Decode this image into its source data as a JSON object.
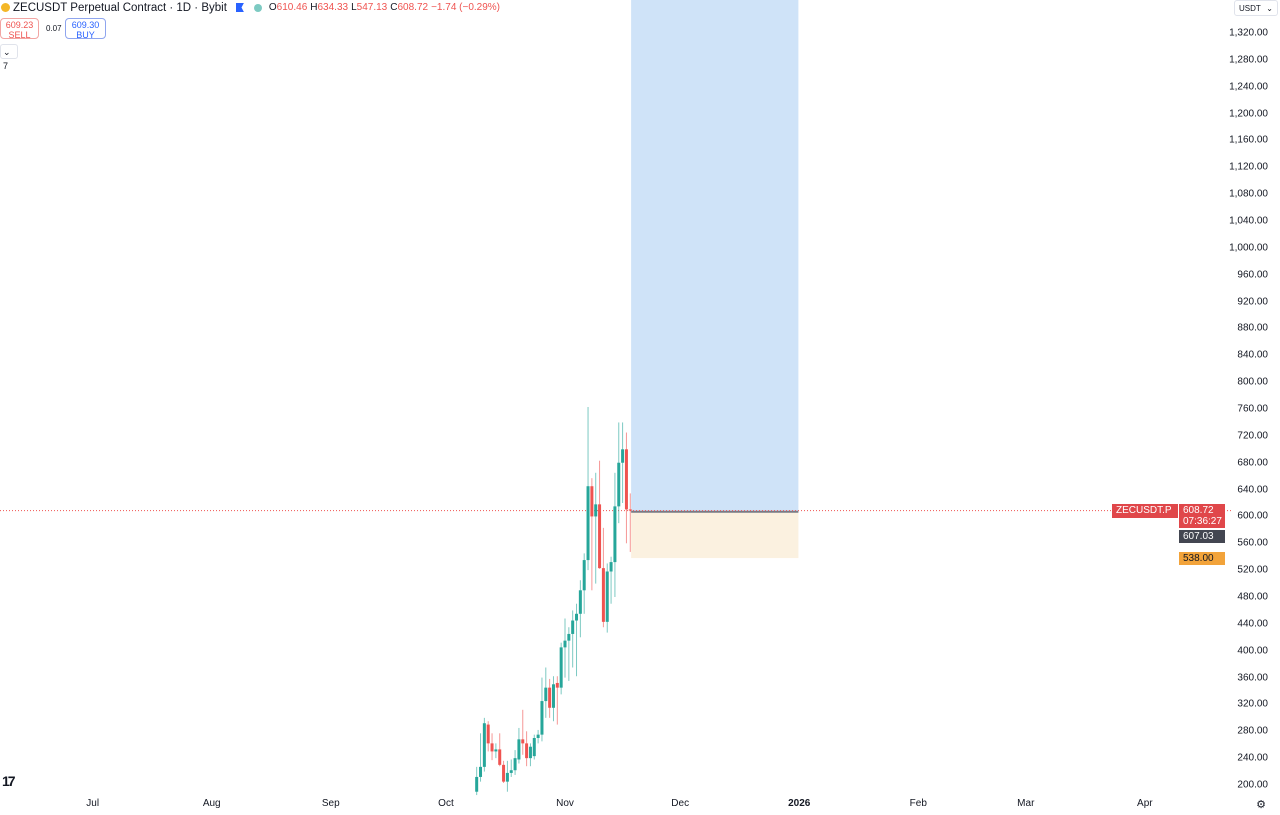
{
  "header": {
    "symbol_title": "ZECUSDT Perpetual Contract · 1D · Bybit",
    "ohlc": {
      "o_label": "O",
      "o": "610.46",
      "h_label": "H",
      "h": "634.33",
      "l_label": "L",
      "l": "547.13",
      "c_label": "C",
      "c": "608.72",
      "change": "−1.74 (−0.29%)"
    },
    "sell_price": "609.23",
    "sell_label": "SELL",
    "spread": "0.07",
    "buy_price": "609.30",
    "buy_label": "BUY",
    "indicators_count": "7",
    "currency": "USDT"
  },
  "tags": {
    "symbol": "ZECUSDT.P",
    "last_price": "608.72",
    "countdown": "07:36:27",
    "entry_price": "607.03",
    "stop_price": "538.00"
  },
  "colors": {
    "up": "#26a69a",
    "down": "#ef5350",
    "target_zone": "#cfe3f8",
    "stop_zone": "#fbf1e0",
    "last_price_tag": "#e0474a",
    "entry_tag": "#434651",
    "stop_tag": "#f2a33a"
  },
  "chart_data": {
    "type": "candlestick",
    "ylim": [
      190,
      1340
    ],
    "y_ticks": [
      "200.00",
      "240.00",
      "280.00",
      "320.00",
      "360.00",
      "400.00",
      "440.00",
      "480.00",
      "520.00",
      "560.00",
      "600.00",
      "640.00",
      "680.00",
      "720.00",
      "760.00",
      "800.00",
      "840.00",
      "880.00",
      "920.00",
      "960.00",
      "1,000.00",
      "1,040.00",
      "1,080.00",
      "1,120.00",
      "1,160.00",
      "1,200.00",
      "1,240.00",
      "1,280.00",
      "1,320.00"
    ],
    "x_ticks": [
      {
        "label": "Jul",
        "date": "2025-07-01"
      },
      {
        "label": "Aug",
        "date": "2025-08-01"
      },
      {
        "label": "Sep",
        "date": "2025-09-01"
      },
      {
        "label": "Oct",
        "date": "2025-10-01"
      },
      {
        "label": "Nov",
        "date": "2025-11-01"
      },
      {
        "label": "Dec",
        "date": "2025-12-01"
      },
      {
        "label": "2026",
        "date": "2026-01-01",
        "bold": true
      },
      {
        "label": "Feb",
        "date": "2026-02-01"
      },
      {
        "label": "Mar",
        "date": "2026-03-01"
      },
      {
        "label": "Apr",
        "date": "2026-04-01"
      }
    ],
    "candles_ohlc": [
      [
        "2025-10-09",
        190,
        227,
        185,
        212
      ],
      [
        "2025-10-10",
        212,
        277,
        205,
        227
      ],
      [
        "2025-10-11",
        227,
        300,
        220,
        292
      ],
      [
        "2025-10-12",
        290,
        295,
        250,
        262
      ],
      [
        "2025-10-13",
        262,
        277,
        237,
        250
      ],
      [
        "2025-10-14",
        250,
        262,
        240,
        253
      ],
      [
        "2025-10-15",
        253,
        277,
        228,
        230
      ],
      [
        "2025-10-16",
        230,
        236,
        203,
        205
      ],
      [
        "2025-10-17",
        205,
        236,
        190,
        218
      ],
      [
        "2025-10-18",
        218,
        238,
        212,
        222
      ],
      [
        "2025-10-19",
        222,
        252,
        215,
        240
      ],
      [
        "2025-10-20",
        238,
        285,
        232,
        268
      ],
      [
        "2025-10-21",
        268,
        312,
        245,
        262
      ],
      [
        "2025-10-22",
        262,
        280,
        228,
        240
      ],
      [
        "2025-10-23",
        240,
        262,
        228,
        257
      ],
      [
        "2025-10-24",
        243,
        275,
        238,
        270
      ],
      [
        "2025-10-25",
        270,
        282,
        262,
        275
      ],
      [
        "2025-10-26",
        275,
        360,
        265,
        325
      ],
      [
        "2025-10-27",
        325,
        375,
        300,
        345
      ],
      [
        "2025-10-28",
        345,
        358,
        300,
        315
      ],
      [
        "2025-10-29",
        315,
        362,
        295,
        350
      ],
      [
        "2025-10-30",
        352,
        362,
        290,
        345
      ],
      [
        "2025-10-31",
        345,
        412,
        335,
        405
      ],
      [
        "2025-11-01",
        405,
        448,
        360,
        415
      ],
      [
        "2025-11-02",
        415,
        435,
        355,
        425
      ],
      [
        "2025-11-03",
        425,
        460,
        375,
        445
      ],
      [
        "2025-11-04",
        445,
        470,
        362,
        455
      ],
      [
        "2025-11-05",
        455,
        505,
        420,
        490
      ],
      [
        "2025-11-06",
        490,
        545,
        455,
        535
      ],
      [
        "2025-11-07",
        535,
        763,
        520,
        645
      ],
      [
        "2025-11-08",
        645,
        657,
        490,
        600
      ],
      [
        "2025-11-09",
        600,
        665,
        500,
        618
      ],
      [
        "2025-11-10",
        618,
        683,
        522,
        523
      ],
      [
        "2025-11-11",
        523,
        583,
        435,
        443
      ],
      [
        "2025-11-12",
        443,
        530,
        427,
        518
      ],
      [
        "2025-11-13",
        518,
        540,
        470,
        532
      ],
      [
        "2025-11-14",
        532,
        665,
        480,
        615
      ],
      [
        "2025-11-15",
        615,
        740,
        590,
        680
      ],
      [
        "2025-11-16",
        680,
        740,
        620,
        700
      ],
      [
        "2025-11-17",
        700,
        725,
        560,
        610.46
      ],
      [
        "2025-11-18",
        610.46,
        634.33,
        547.13,
        608.72
      ]
    ],
    "last_price": 608.72,
    "position": {
      "type": "long",
      "start": "2025-11-19",
      "end": "2025-12-31",
      "entry": 607.03,
      "stop": 538.0,
      "target_above": 1340
    }
  }
}
